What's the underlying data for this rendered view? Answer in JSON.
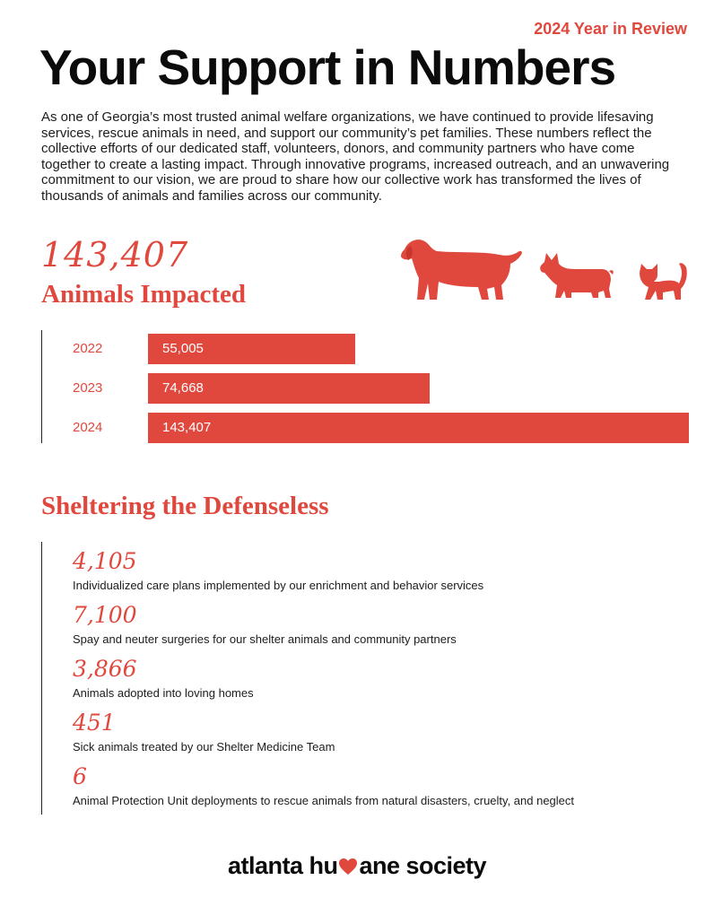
{
  "header": {
    "kicker": "2024 Year in Review",
    "title": "Your Support in Numbers",
    "intro": "As one of Georgia’s most trusted animal welfare organizations, we have continued to provide lifesaving services, rescue animals in need, and support our community’s pet families. These numbers reflect the collective efforts of our dedicated staff, volunteers, donors, and community partners who have come together to create a lasting impact. Through innovative programs, increased outreach, and an unwavering commitment to our vision, we are proud to share how our collective work has transformed the lives of thousands of animals and families across our community."
  },
  "impact": {
    "total": "143,407",
    "label": "Animals Impacted",
    "icons": [
      "dog-large-icon",
      "corgi-icon",
      "cat-icon"
    ]
  },
  "chart_data": {
    "type": "bar",
    "orientation": "horizontal",
    "categories": [
      "2022",
      "2023",
      "2024"
    ],
    "values": [
      55005,
      74668,
      143407
    ],
    "value_labels": [
      "55,005",
      "74,668",
      "143,407"
    ],
    "xlim": [
      0,
      143407
    ],
    "grid": false
  },
  "sheltering": {
    "title": "Sheltering the Defenseless",
    "stats": [
      {
        "number": "4,105",
        "desc": "Individualized care plans implemented by our enrichment and behavior services"
      },
      {
        "number": "7,100",
        "desc": "Spay and neuter surgeries for our shelter animals and community partners"
      },
      {
        "number": "3,866",
        "desc": "Animals adopted into loving homes"
      },
      {
        "number": "451",
        "desc": "Sick animals treated by our Shelter Medicine Team"
      },
      {
        "number": "6",
        "desc": "Animal Protection Unit deployments to rescue animals from natural disasters, cruelty, and neglect"
      }
    ]
  },
  "footer": {
    "logo_before": "atlanta hu",
    "logo_after": "ane society",
    "logo_icon": "heart-icon"
  },
  "colors": {
    "accent": "#e0483e",
    "text": "#141414"
  }
}
